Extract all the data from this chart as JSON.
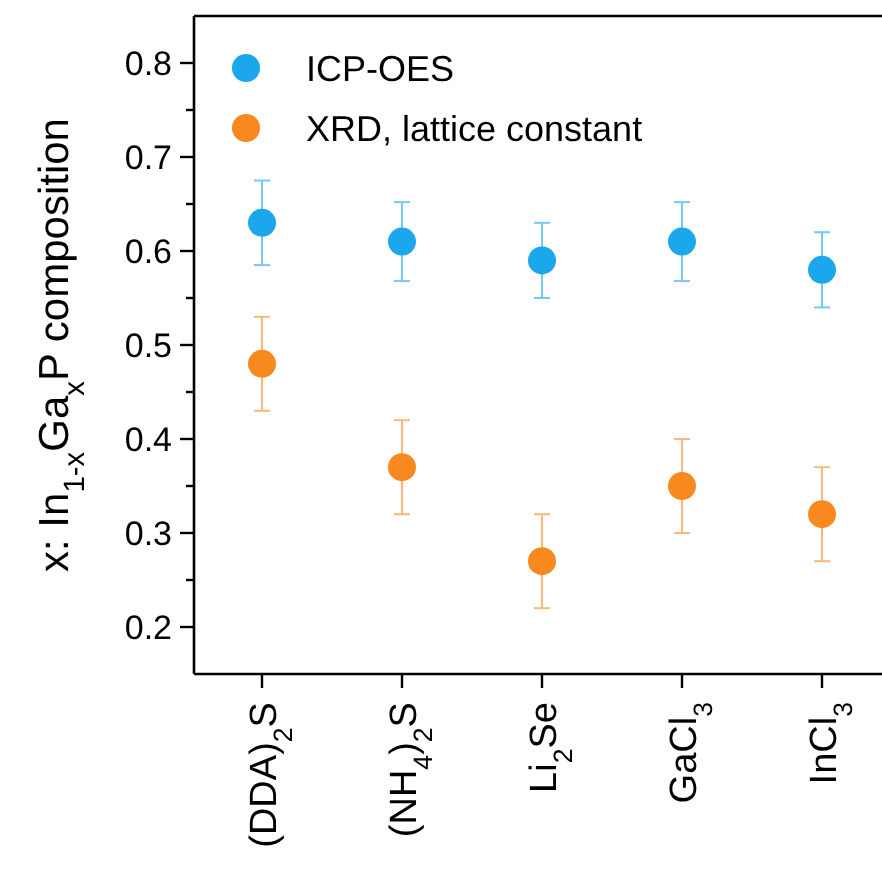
{
  "chart_data": {
    "type": "scatter",
    "ylabel": "x: In$_{1-x}$Ga$_{x}$P composition",
    "categories": [
      "(DDA)$_{2}$S",
      "(NH$_{4}$)$_{2}$S",
      "Li$_{2}$Se",
      "GaCl$_{3}$",
      "InCl$_{3}$"
    ],
    "series": [
      {
        "name": "ICP-OES",
        "color": "#1aa7ec",
        "values": [
          0.63,
          0.61,
          0.59,
          0.61,
          0.58
        ],
        "errors": [
          0.045,
          0.042,
          0.04,
          0.042,
          0.04
        ]
      },
      {
        "name": "XRD, lattice constant",
        "color": "#f7891f",
        "values": [
          0.48,
          0.37,
          0.27,
          0.35,
          0.32
        ],
        "errors": [
          0.05,
          0.05,
          0.05,
          0.05,
          0.05
        ]
      }
    ],
    "ylim": [
      0.15,
      0.85
    ],
    "yticks": [
      0.2,
      {
        "value": 0.25,
        "label": null
      },
      0.3,
      {
        "value": 0.35,
        "label": null
      },
      0.4,
      {
        "value": 0.45,
        "label": null
      },
      0.5,
      {
        "value": 0.55,
        "label": null
      },
      0.6,
      {
        "value": 0.65,
        "label": null
      },
      0.7,
      {
        "value": 0.75,
        "label": null
      },
      0.8
    ],
    "marker": "circle",
    "legend": "top left",
    "grid": false
  }
}
